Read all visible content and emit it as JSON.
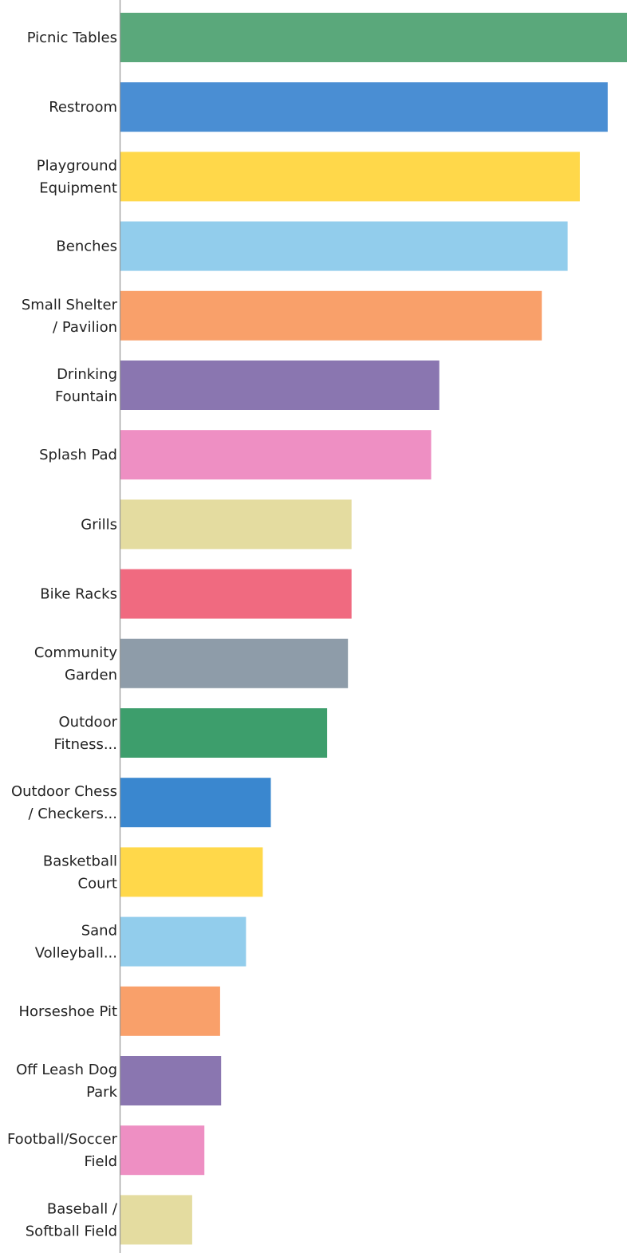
{
  "chart_data": {
    "type": "bar",
    "orientation": "horizontal",
    "categories": [
      [
        "Picnic Tables"
      ],
      [
        "Restroom"
      ],
      [
        "Playground",
        "Equipment"
      ],
      [
        "Benches"
      ],
      [
        "Small Shelter",
        "/ Pavilion"
      ],
      [
        "Drinking",
        "Fountain"
      ],
      [
        "Splash Pad"
      ],
      [
        "Grills"
      ],
      [
        "Bike Racks"
      ],
      [
        "Community",
        "Garden"
      ],
      [
        "Outdoor",
        "Fitness..."
      ],
      [
        "Outdoor Chess",
        "/ Checkers..."
      ],
      [
        "Basketball",
        "Court"
      ],
      [
        "Sand",
        "Volleyball..."
      ],
      [
        "Horseshoe Pit"
      ],
      [
        "Off Leash Dog",
        "Park"
      ],
      [
        "Football/Soccer",
        "Field"
      ],
      [
        "Baseball /",
        "Softball Field"
      ]
    ],
    "values": [
      100,
      96.2,
      90.7,
      88.3,
      83.2,
      63.0,
      61.4,
      45.7,
      45.7,
      45.0,
      40.9,
      29.8,
      28.2,
      24.9,
      19.8,
      20.0,
      16.7,
      14.3
    ],
    "xlim": [
      0,
      100
    ],
    "colors": [
      "#5aa87b",
      "#4a8ed3",
      "#ffd84a",
      "#92cdec",
      "#f9a06a",
      "#8a76b0",
      "#ee8fc3",
      "#e4dca0",
      "#f06a80",
      "#8e9ca9",
      "#3d9e6c",
      "#3a87cf",
      "#ffd84a",
      "#92cdec",
      "#f9a06a",
      "#8a76b0",
      "#ee8fc3",
      "#e4dca0"
    ],
    "axis_color": "#9a9a9a",
    "title": "",
    "xlabel": "",
    "ylabel": "",
    "grid": false,
    "legend": "none"
  }
}
